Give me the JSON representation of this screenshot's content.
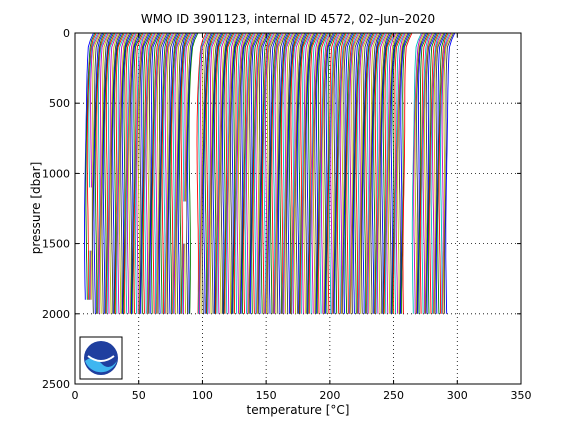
{
  "chart_data": {
    "type": "line",
    "title": "WMO ID 3901123, internal ID 4572, 02–Jun–2020",
    "xlabel": "temperature [°C]",
    "ylabel": "pressure [dbar]",
    "xlim": [
      0,
      350
    ],
    "ylim": [
      2500,
      0
    ],
    "y_reversed": true,
    "xticks": [
      0,
      50,
      100,
      150,
      200,
      250,
      300,
      350
    ],
    "yticks": [
      0,
      500,
      1000,
      1500,
      2000,
      2500
    ],
    "grid": "dotted",
    "series_colors": [
      "#0000ff",
      "#008000",
      "#ff0000",
      "#00bfbf",
      "#bf00bf",
      "#bfbf00",
      "#404040"
    ],
    "profile_count": 280,
    "profile_spacing_degC": 1.05,
    "max_pressure_dbar": 2000,
    "gaps_x": [
      [
        90,
        96
      ],
      [
        258,
        265
      ]
    ],
    "logo": "noaa-logo"
  }
}
